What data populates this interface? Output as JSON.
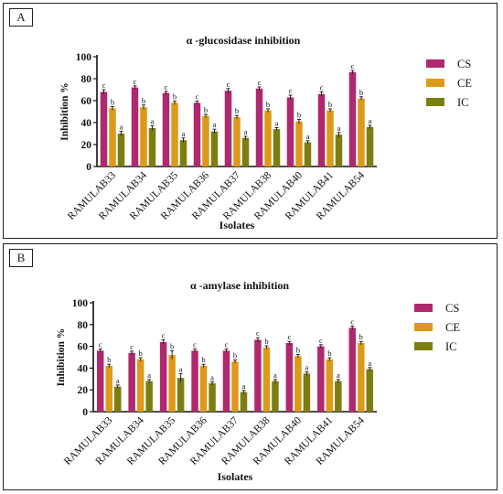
{
  "chart_data": [
    {
      "type": "bar",
      "panel_label": "A",
      "title": "α -glucosidase inhibition",
      "xlabel": "Isolates",
      "ylabel": "Inhibition %",
      "ylim": [
        0,
        100
      ],
      "yticks": [
        0,
        20,
        40,
        60,
        80,
        100
      ],
      "categories": [
        "RAMULAB33",
        "RAMULAB34",
        "RAMULAB35",
        "RAMULAB36",
        "RAMULAB37",
        "RAMULAB38",
        "RAMULAB40",
        "RAMULAB41",
        "RAMULAB54"
      ],
      "series": [
        {
          "name": "CS",
          "color": "#b0286e",
          "values": [
            68,
            72,
            67,
            58,
            69,
            71,
            63,
            66,
            86
          ],
          "errors": [
            2,
            1.5,
            1.5,
            1.5,
            2,
            1.5,
            2,
            2,
            1.5
          ],
          "labels": [
            "c",
            "c",
            "c",
            "c",
            "c",
            "c",
            "c",
            "c",
            "c"
          ]
        },
        {
          "name": "CE",
          "color": "#dc9a18",
          "values": [
            53,
            54,
            58,
            46,
            45,
            51,
            41,
            51,
            62
          ],
          "errors": [
            1.5,
            2,
            1.5,
            1.5,
            1.5,
            1.5,
            2,
            1.5,
            1.5
          ],
          "labels": [
            "b",
            "b",
            "b",
            "b",
            "b",
            "b",
            "b",
            "b",
            "b"
          ]
        },
        {
          "name": "IC",
          "color": "#7c7e12",
          "values": [
            30,
            35,
            24,
            32,
            26,
            34,
            22,
            29,
            36
          ],
          "errors": [
            2,
            2,
            2,
            2,
            1.5,
            1.5,
            1.5,
            2,
            1.5
          ],
          "labels": [
            "a",
            "a",
            "a",
            "a",
            "a",
            "a",
            "a",
            "a",
            "a"
          ]
        }
      ],
      "legend_position": "right"
    },
    {
      "type": "bar",
      "panel_label": "B",
      "title": "α -amylase inhibition",
      "xlabel": "Isolates",
      "ylabel": "Inhibition %",
      "ylim": [
        0,
        100
      ],
      "yticks": [
        0,
        20,
        40,
        60,
        80,
        100
      ],
      "categories": [
        "RAMULAB33",
        "RAMULAB34",
        "RAMULAB35",
        "RAMULAB36",
        "RAMULAB37",
        "RAMULAB38",
        "RAMULAB40",
        "RAMULAB41",
        "RAMULAB54"
      ],
      "series": [
        {
          "name": "CS",
          "color": "#b0286e",
          "values": [
            56,
            54,
            64,
            56,
            56,
            66,
            63,
            60,
            77
          ],
          "errors": [
            1.5,
            1.5,
            2,
            1.5,
            1.5,
            2,
            1.5,
            1.5,
            1.5
          ],
          "labels": [
            "c",
            "c",
            "c",
            "c",
            "c",
            "c",
            "c",
            "c",
            "c"
          ]
        },
        {
          "name": "CE",
          "color": "#dc9a18",
          "values": [
            42,
            48,
            52,
            42,
            46,
            59,
            51,
            48,
            63
          ],
          "errors": [
            1.5,
            1.5,
            4,
            1.5,
            1.5,
            1.5,
            1.5,
            1.5,
            1.5
          ],
          "labels": [
            "b",
            "b",
            "b",
            "b",
            "b",
            "b",
            "b",
            "b",
            "b"
          ]
        },
        {
          "name": "IC",
          "color": "#7c7e12",
          "values": [
            23,
            28,
            31,
            26,
            18,
            28,
            35,
            28,
            39
          ],
          "errors": [
            1.5,
            1.5,
            4,
            1.5,
            1.5,
            1.5,
            1.5,
            1.5,
            1.5
          ],
          "labels": [
            "a",
            "a",
            "a",
            "a",
            "a",
            "a",
            "a",
            "a",
            "a"
          ]
        }
      ],
      "legend_position": "right"
    }
  ]
}
